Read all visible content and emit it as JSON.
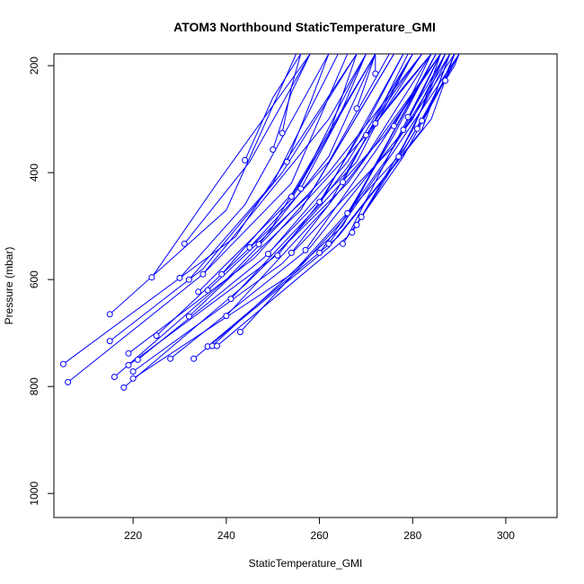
{
  "chart_data": {
    "type": "line",
    "title": "ATOM3 Northbound StaticTemperature_GMI",
    "xlabel": "StaticTemperature_GMI",
    "ylabel": "Pressure (mbar)",
    "xlim": [
      203,
      311
    ],
    "ylim": [
      1045,
      178
    ],
    "y_reversed": true,
    "x_ticks": [
      220,
      240,
      260,
      280,
      300
    ],
    "y_ticks": [
      200,
      400,
      600,
      800,
      1000
    ],
    "grid": false,
    "series_color": "#0000ff",
    "marker": "open-circle-at-start",
    "series": [
      {
        "values": [
          [
            205,
            758
          ],
          [
            242,
            520
          ],
          [
            268,
            178
          ]
        ]
      },
      {
        "values": [
          [
            206,
            792
          ],
          [
            235,
            590
          ],
          [
            262,
            300
          ],
          [
            270,
            178
          ]
        ]
      },
      {
        "values": [
          [
            215,
            665
          ],
          [
            240,
            470
          ],
          [
            255,
            178
          ]
        ]
      },
      {
        "values": [
          [
            215,
            715
          ],
          [
            235,
            580
          ],
          [
            252,
            400
          ],
          [
            268,
            178
          ]
        ]
      },
      {
        "values": [
          [
            216,
            782
          ],
          [
            240,
            600
          ],
          [
            262,
            400
          ],
          [
            282,
            178
          ]
        ]
      },
      {
        "values": [
          [
            218,
            802
          ],
          [
            244,
            610
          ],
          [
            266,
            420
          ],
          [
            286,
            178
          ]
        ]
      },
      {
        "values": [
          [
            219,
            738
          ],
          [
            246,
            560
          ],
          [
            270,
            330
          ],
          [
            284,
            178
          ]
        ]
      },
      {
        "values": [
          [
            219,
            760
          ],
          [
            250,
            560
          ],
          [
            274,
            330
          ],
          [
            286,
            178
          ]
        ]
      },
      {
        "values": [
          [
            220,
            772
          ],
          [
            252,
            570
          ],
          [
            276,
            350
          ],
          [
            289,
            178
          ]
        ]
      },
      {
        "values": [
          [
            220,
            785
          ],
          [
            254,
            590
          ],
          [
            278,
            360
          ],
          [
            290,
            178
          ]
        ]
      },
      {
        "values": [
          [
            221,
            750
          ],
          [
            248,
            560
          ],
          [
            268,
            380
          ],
          [
            280,
            178
          ]
        ]
      },
      {
        "values": [
          [
            224,
            596
          ],
          [
            238,
            420
          ],
          [
            258,
            178
          ]
        ]
      },
      {
        "values": [
          [
            225,
            705
          ],
          [
            250,
            500
          ],
          [
            272,
            178
          ]
        ]
      },
      {
        "values": [
          [
            228,
            748
          ],
          [
            258,
            540
          ],
          [
            280,
            300
          ],
          [
            287,
            178
          ]
        ]
      },
      {
        "values": [
          [
            230,
            597
          ],
          [
            244,
            460
          ],
          [
            262,
            178
          ]
        ]
      },
      {
        "values": [
          [
            231,
            533
          ],
          [
            245,
            380
          ],
          [
            258,
            178
          ]
        ]
      },
      {
        "values": [
          [
            232,
            669
          ],
          [
            256,
            470
          ],
          [
            276,
            178
          ]
        ]
      },
      {
        "values": [
          [
            232,
            600
          ],
          [
            250,
            420
          ],
          [
            264,
            178
          ]
        ]
      },
      {
        "values": [
          [
            233,
            748
          ],
          [
            262,
            540
          ],
          [
            282,
            320
          ],
          [
            288,
            178
          ]
        ]
      },
      {
        "values": [
          [
            234,
            623
          ],
          [
            254,
            450
          ],
          [
            272,
            178
          ]
        ]
      },
      {
        "values": [
          [
            235,
            590
          ],
          [
            254,
            420
          ],
          [
            266,
            178
          ]
        ]
      },
      {
        "values": [
          [
            236,
            725
          ],
          [
            264,
            520
          ],
          [
            284,
            300
          ],
          [
            289,
            178
          ]
        ]
      },
      {
        "values": [
          [
            236,
            620
          ],
          [
            258,
            440
          ],
          [
            276,
            178
          ]
        ]
      },
      {
        "values": [
          [
            237,
            724
          ],
          [
            265,
            500
          ],
          [
            285,
            178
          ]
        ]
      },
      {
        "values": [
          [
            238,
            724
          ],
          [
            266,
            520
          ],
          [
            286,
            178
          ]
        ]
      },
      {
        "values": [
          [
            239,
            590
          ],
          [
            256,
            420
          ],
          [
            270,
            178
          ]
        ]
      },
      {
        "values": [
          [
            240,
            668
          ],
          [
            262,
            460
          ],
          [
            280,
            178
          ]
        ]
      },
      {
        "values": [
          [
            241,
            636
          ],
          [
            260,
            460
          ],
          [
            278,
            178
          ]
        ]
      },
      {
        "values": [
          [
            243,
            698
          ],
          [
            266,
            480
          ],
          [
            285,
            178
          ]
        ]
      },
      {
        "values": [
          [
            244,
            377
          ],
          [
            250,
            260
          ],
          [
            256,
            178
          ]
        ]
      },
      {
        "values": [
          [
            245,
            540
          ],
          [
            262,
            380
          ],
          [
            275,
            178
          ]
        ]
      },
      {
        "values": [
          [
            247,
            534
          ],
          [
            262,
            370
          ],
          [
            272,
            178
          ]
        ]
      },
      {
        "values": [
          [
            249,
            552
          ],
          [
            266,
            380
          ],
          [
            280,
            178
          ]
        ]
      },
      {
        "values": [
          [
            250,
            357
          ],
          [
            254,
            250
          ],
          [
            258,
            178
          ]
        ]
      },
      {
        "values": [
          [
            251,
            555
          ],
          [
            266,
            390
          ],
          [
            282,
            178
          ]
        ]
      },
      {
        "values": [
          [
            252,
            326
          ],
          [
            254,
            240
          ],
          [
            256,
            178
          ]
        ]
      },
      {
        "values": [
          [
            253,
            380
          ],
          [
            258,
            270
          ],
          [
            262,
            178
          ]
        ]
      },
      {
        "values": [
          [
            254,
            550
          ],
          [
            270,
            370
          ],
          [
            284,
            178
          ]
        ]
      },
      {
        "values": [
          [
            254,
            445
          ],
          [
            262,
            330
          ],
          [
            268,
            178
          ]
        ]
      },
      {
        "values": [
          [
            256,
            430
          ],
          [
            264,
            300
          ],
          [
            270,
            178
          ]
        ]
      },
      {
        "values": [
          [
            257,
            545
          ],
          [
            272,
            360
          ],
          [
            286,
            178
          ]
        ]
      },
      {
        "values": [
          [
            260,
            455
          ],
          [
            270,
            310
          ],
          [
            278,
            178
          ]
        ]
      },
      {
        "values": [
          [
            260,
            550
          ],
          [
            274,
            380
          ],
          [
            288,
            178
          ]
        ]
      },
      {
        "values": [
          [
            262,
            533
          ],
          [
            276,
            360
          ],
          [
            290,
            178
          ]
        ]
      },
      {
        "values": [
          [
            265,
            418
          ],
          [
            272,
            300
          ],
          [
            279,
            178
          ]
        ]
      },
      {
        "values": [
          [
            265,
            533
          ],
          [
            278,
            370
          ],
          [
            290,
            178
          ]
        ]
      },
      {
        "values": [
          [
            266,
            476
          ],
          [
            276,
            330
          ],
          [
            285,
            178
          ]
        ]
      },
      {
        "values": [
          [
            267,
            512
          ],
          [
            278,
            350
          ],
          [
            288,
            178
          ]
        ]
      },
      {
        "values": [
          [
            268,
            498
          ],
          [
            280,
            330
          ],
          [
            290,
            178
          ]
        ]
      },
      {
        "values": [
          [
            268,
            280
          ],
          [
            270,
            230
          ],
          [
            272,
            178
          ]
        ]
      },
      {
        "values": [
          [
            269,
            483
          ],
          [
            280,
            320
          ],
          [
            287,
            178
          ]
        ]
      },
      {
        "values": [
          [
            270,
            330
          ],
          [
            276,
            250
          ],
          [
            282,
            178
          ]
        ]
      },
      {
        "values": [
          [
            272,
            215
          ],
          [
            272,
            178
          ]
        ]
      },
      {
        "values": [
          [
            272,
            308
          ],
          [
            278,
            240
          ],
          [
            284,
            178
          ]
        ]
      },
      {
        "values": [
          [
            276,
            313
          ],
          [
            280,
            250
          ],
          [
            284,
            178
          ]
        ]
      },
      {
        "values": [
          [
            277,
            370
          ],
          [
            282,
            280
          ],
          [
            286,
            178
          ]
        ]
      },
      {
        "values": [
          [
            278,
            320
          ],
          [
            282,
            250
          ],
          [
            286,
            178
          ]
        ]
      },
      {
        "values": [
          [
            279,
            296
          ],
          [
            283,
            240
          ],
          [
            287,
            178
          ]
        ]
      },
      {
        "values": [
          [
            281,
            318
          ],
          [
            285,
            250
          ],
          [
            288,
            178
          ]
        ]
      },
      {
        "values": [
          [
            282,
            303
          ],
          [
            286,
            240
          ],
          [
            289,
            178
          ]
        ]
      },
      {
        "values": [
          [
            287,
            228
          ],
          [
            289,
            200
          ],
          [
            290,
            178
          ]
        ]
      }
    ]
  }
}
